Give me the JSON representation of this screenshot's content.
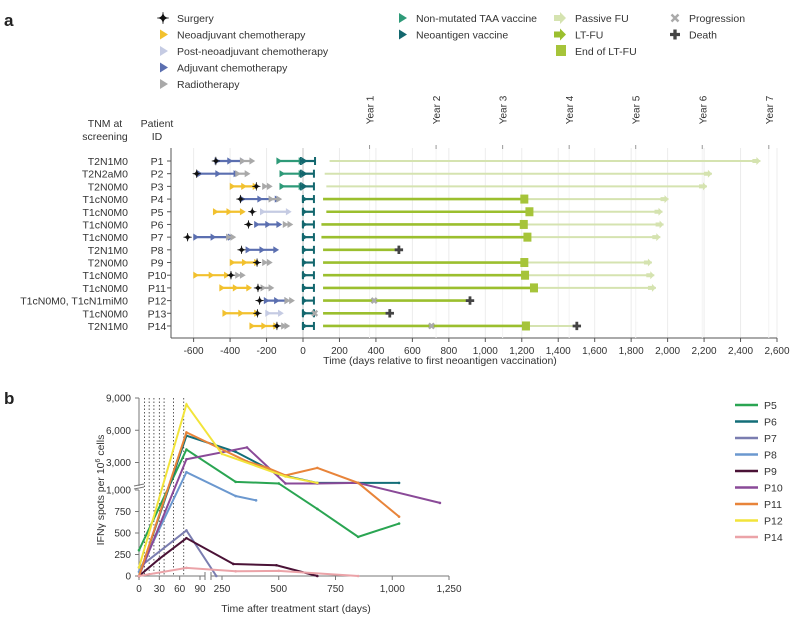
{
  "panel_a": {
    "label": "a",
    "legend": [
      {
        "label": "Surgery",
        "icon": "four-point-star",
        "color": "#111111"
      },
      {
        "label": "Neoadjuvant chemotherapy",
        "icon": "triangle-right",
        "color": "#f2c12e"
      },
      {
        "label": "Post-neoadjuvant chemotherapy",
        "icon": "triangle-right",
        "color": "#c5cbe3"
      },
      {
        "label": "Adjuvant chemotherapy",
        "icon": "triangle-right",
        "color": "#5b6fb0"
      },
      {
        "label": "Radiotherapy",
        "icon": "triangle-right",
        "color": "#a9a9a9"
      },
      {
        "label": "Non-mutated TAA vaccine",
        "icon": "triangle-right",
        "color": "#2e9a78"
      },
      {
        "label": "Neoantigen vaccine",
        "icon": "triangle-right",
        "color": "#13676e"
      },
      {
        "label": "Passive FU",
        "icon": "arrow-right",
        "color": "#d5e3b0"
      },
      {
        "label": "LT-FU",
        "icon": "arrow-right",
        "color": "#9bbf2e"
      },
      {
        "label": "End of LT-FU",
        "icon": "square",
        "color": "#a6c43a"
      },
      {
        "label": "Progression",
        "icon": "x-cross",
        "color": "#aaaaaa"
      },
      {
        "label": "Death",
        "icon": "plus-cross",
        "color": "#444444"
      }
    ],
    "col_headers": {
      "tnm": [
        "TNM at",
        "screening"
      ],
      "pid": [
        "Patient",
        "ID"
      ]
    }
  },
  "chart_data": [
    {
      "type": "timeline",
      "xlabel": "Time (days relative to first neoantigen vaccination)",
      "xlim": [
        -720,
        2600
      ],
      "xticks": [
        "-600",
        "-400",
        "-200",
        "0",
        "200",
        "400",
        "600",
        "800",
        "1,000",
        "1,200",
        "1,400",
        "1,600",
        "1,800",
        "2,000",
        "2,200",
        "2,400",
        "2,600"
      ],
      "xtick_values": [
        -600,
        -400,
        -200,
        0,
        200,
        400,
        600,
        800,
        1000,
        1200,
        1400,
        1600,
        1800,
        2000,
        2200,
        2400,
        2600
      ],
      "year_markers": [
        {
          "label": "Year 1",
          "day": 365
        },
        {
          "label": "Year 2",
          "day": 730
        },
        {
          "label": "Year 3",
          "day": 1095
        },
        {
          "label": "Year 4",
          "day": 1460
        },
        {
          "label": "Year 5",
          "day": 1825
        },
        {
          "label": "Year 6",
          "day": 2190
        },
        {
          "label": "Year 7",
          "day": 2555
        }
      ],
      "grid": true,
      "patients": [
        {
          "id": "P1",
          "tnm": "T2N1M0",
          "surgery": -478,
          "adjuvant": [
            -473,
            -334
          ],
          "radio": [
            -334,
            -282
          ],
          "taa": [
            -134,
            -12
          ],
          "neo": [
            -12,
            66
          ],
          "passive": [
            146,
            2509
          ]
        },
        {
          "id": "P2",
          "tnm": "T2N2aM0",
          "surgery": -583,
          "adjuvant": [
            -569,
            -369
          ],
          "radio": [
            -360,
            -308
          ],
          "taa": [
            -117,
            -12
          ],
          "neo": [
            -12,
            60
          ],
          "passive": [
            119,
            2243
          ]
        },
        {
          "id": "P3",
          "tnm": "T2N0M0",
          "neoadjuvant": [
            -390,
            -264
          ],
          "surgery": -256,
          "radio": [
            -212,
            -186
          ],
          "taa": [
            -117,
            -12
          ],
          "neo": [
            -12,
            60
          ],
          "passive": [
            128,
            2216
          ]
        },
        {
          "id": "P4",
          "tnm": "T1cN0M0",
          "surgery": -343,
          "adjuvant": [
            -334,
            -143
          ],
          "radio": [
            -177,
            -134
          ],
          "neo": [
            0,
            60
          ],
          "ltfu": [
            110,
            1214
          ],
          "end_ltfu": 1214,
          "passive": [
            1214,
            2005
          ]
        },
        {
          "id": "P5",
          "tnm": "T1cN0M0",
          "neoadjuvant": [
            -482,
            -334
          ],
          "surgery": -278,
          "postneo": [
            -224,
            -82
          ],
          "neo": [
            0,
            60
          ],
          "ltfu": [
            128,
            1242
          ],
          "end_ltfu": 1242,
          "passive": [
            1242,
            1972
          ]
        },
        {
          "id": "P6",
          "tnm": "T1cN0M0",
          "surgery": -299,
          "adjuvant": [
            -256,
            -134
          ],
          "radio": [
            -99,
            -73
          ],
          "neo": [
            0,
            60
          ],
          "ltfu": [
            101,
            1211
          ],
          "end_ltfu": 1211,
          "passive": [
            1211,
            1978
          ]
        },
        {
          "id": "P7",
          "tnm": "T1cN0M0",
          "surgery": -633,
          "adjuvant": [
            -590,
            -400
          ],
          "radio": [
            -410,
            -386
          ],
          "neo": [
            0,
            60
          ],
          "ltfu": [
            101,
            1231
          ],
          "end_ltfu": 1231,
          "passive": [
            1231,
            1960
          ]
        },
        {
          "id": "P8",
          "tnm": "T2N1M0",
          "surgery": -337,
          "adjuvant": [
            -303,
            -151
          ],
          "neo": [
            0,
            60
          ],
          "ltfu": [
            110,
            526
          ],
          "death": 526
        },
        {
          "id": "P9",
          "tnm": "T2N0M0",
          "neoadjuvant": [
            -390,
            -256
          ],
          "surgery": -252,
          "radio": [
            -212,
            -186
          ],
          "neo": [
            0,
            60
          ],
          "ltfu": [
            110,
            1214
          ],
          "end_ltfu": 1214,
          "passive": [
            1214,
            1914
          ]
        },
        {
          "id": "P10",
          "tnm": "T1cN0M0",
          "neoadjuvant": [
            -590,
            -421
          ],
          "surgery": -395,
          "radio": [
            -360,
            -334
          ],
          "neo": [
            0,
            60
          ],
          "ltfu": [
            110,
            1218
          ],
          "end_ltfu": 1218,
          "passive": [
            1218,
            1927
          ]
        },
        {
          "id": "P11",
          "tnm": "T1cN0M0",
          "neoadjuvant": [
            -447,
            -299
          ],
          "surgery": -247,
          "radio": [
            -221,
            -177
          ],
          "neo": [
            0,
            60
          ],
          "ltfu": [
            110,
            1267
          ],
          "end_ltfu": 1267,
          "passive": [
            1267,
            1936
          ]
        },
        {
          "id": "P12",
          "tnm": "T1cN0M0, T1cN1miM0",
          "surgery": -238,
          "adjuvant": [
            -203,
            -90
          ],
          "radio": [
            -90,
            -64
          ],
          "neo": [
            0,
            60
          ],
          "ltfu": [
            110,
            916
          ],
          "progression": 390,
          "death": 916
        },
        {
          "id": "P13",
          "tnm": "T1cN0M0",
          "neoadjuvant": [
            -430,
            -256
          ],
          "surgery": -250,
          "postneo": [
            -195,
            -125
          ],
          "neo": [
            0,
            60
          ],
          "progression": 64,
          "ltfu": [
            110,
            476
          ],
          "death": 476
        },
        {
          "id": "P14",
          "tnm": "T2N1M0",
          "neoadjuvant": [
            -282,
            -151
          ],
          "surgery": -143,
          "radio": [
            -108,
            -90
          ],
          "neo": [
            0,
            60
          ],
          "ltfu": [
            110,
            1223
          ],
          "end_ltfu": 1223,
          "progression": 705,
          "passive": [
            1223,
            1502
          ],
          "death": 1502
        }
      ]
    },
    {
      "type": "line",
      "panel_label": "b",
      "xlabel": "Time after treatment start (days)",
      "ylabel_parts": [
        "IFNγ spots per 10",
        "6",
        " cells"
      ],
      "x_axis_broken": true,
      "y_axis_broken": true,
      "xticks": [
        {
          "v": 0,
          "l": "0"
        },
        {
          "v": 30,
          "l": "30"
        },
        {
          "v": 60,
          "l": "60"
        },
        {
          "v": 90,
          "l": "90"
        },
        {
          "v": 250,
          "l": "250"
        },
        {
          "v": 500,
          "l": "500"
        },
        {
          "v": 750,
          "l": "750"
        },
        {
          "v": 1000,
          "l": "1,000"
        },
        {
          "v": 1250,
          "l": "1,250"
        }
      ],
      "yticks": [
        {
          "v": 0,
          "l": "0"
        },
        {
          "v": 250,
          "l": "250"
        },
        {
          "v": 500,
          "l": "500"
        },
        {
          "v": 750,
          "l": "750"
        },
        {
          "v": 1000,
          "l": "1,000"
        },
        {
          "v": 3000,
          "l": "3,000"
        },
        {
          "v": 6000,
          "l": "6,000"
        },
        {
          "v": 9000,
          "l": "9,000"
        }
      ],
      "vaccination_days": [
        8,
        15,
        22,
        30,
        37,
        51,
        66
      ],
      "legend_position": "right",
      "series": [
        {
          "name": "P5",
          "color": "#2aa552",
          "points": [
            [
              0,
              300
            ],
            [
              70,
              4200
            ],
            [
              310,
              1200
            ],
            [
              500,
              1050
            ],
            [
              670,
              780
            ],
            [
              850,
              455
            ],
            [
              1030,
              610
            ]
          ]
        },
        {
          "name": "P6",
          "color": "#136e78",
          "points": [
            [
              0,
              0
            ],
            [
              70,
              5500
            ],
            [
              310,
              4000
            ],
            [
              500,
              1900
            ],
            [
              670,
              1100
            ],
            [
              1030,
              1100
            ]
          ]
        },
        {
          "name": "P7",
          "color": "#7a7db0",
          "points": [
            [
              0,
              100
            ],
            [
              70,
              530
            ],
            [
              225,
              0
            ]
          ]
        },
        {
          "name": "P8",
          "color": "#6b98cf",
          "points": [
            [
              0,
              50
            ],
            [
              70,
              2100
            ],
            [
              310,
              930
            ],
            [
              400,
              880
            ]
          ]
        },
        {
          "name": "P9",
          "color": "#4a1236",
          "points": [
            [
              0,
              0
            ],
            [
              30,
              200
            ],
            [
              70,
              440
            ],
            [
              300,
              140
            ],
            [
              490,
              125
            ],
            [
              670,
              0
            ]
          ]
        },
        {
          "name": "P10",
          "color": "#8a4a98",
          "points": [
            [
              0,
              0
            ],
            [
              70,
              3300
            ],
            [
              360,
              4400
            ],
            [
              530,
              1050
            ],
            [
              670,
              1050
            ],
            [
              850,
              1100
            ],
            [
              1210,
              850
            ]
          ]
        },
        {
          "name": "P11",
          "color": "#e8843a",
          "points": [
            [
              0,
              0
            ],
            [
              70,
              5800
            ],
            [
              360,
              3100
            ],
            [
              450,
              2500
            ],
            [
              530,
              1800
            ],
            [
              670,
              2500
            ],
            [
              850,
              1100
            ],
            [
              1030,
              690
            ]
          ]
        },
        {
          "name": "P12",
          "color": "#f2e43a",
          "points": [
            [
              0,
              100
            ],
            [
              70,
              8400
            ],
            [
              250,
              3800
            ],
            [
              530,
              1700
            ],
            [
              670,
              1100
            ]
          ]
        },
        {
          "name": "P14",
          "color": "#eba3a8",
          "points": [
            [
              0,
              0
            ],
            [
              70,
              95
            ],
            [
              310,
              55
            ],
            [
              500,
              60
            ],
            [
              850,
              0
            ]
          ]
        }
      ]
    }
  ]
}
